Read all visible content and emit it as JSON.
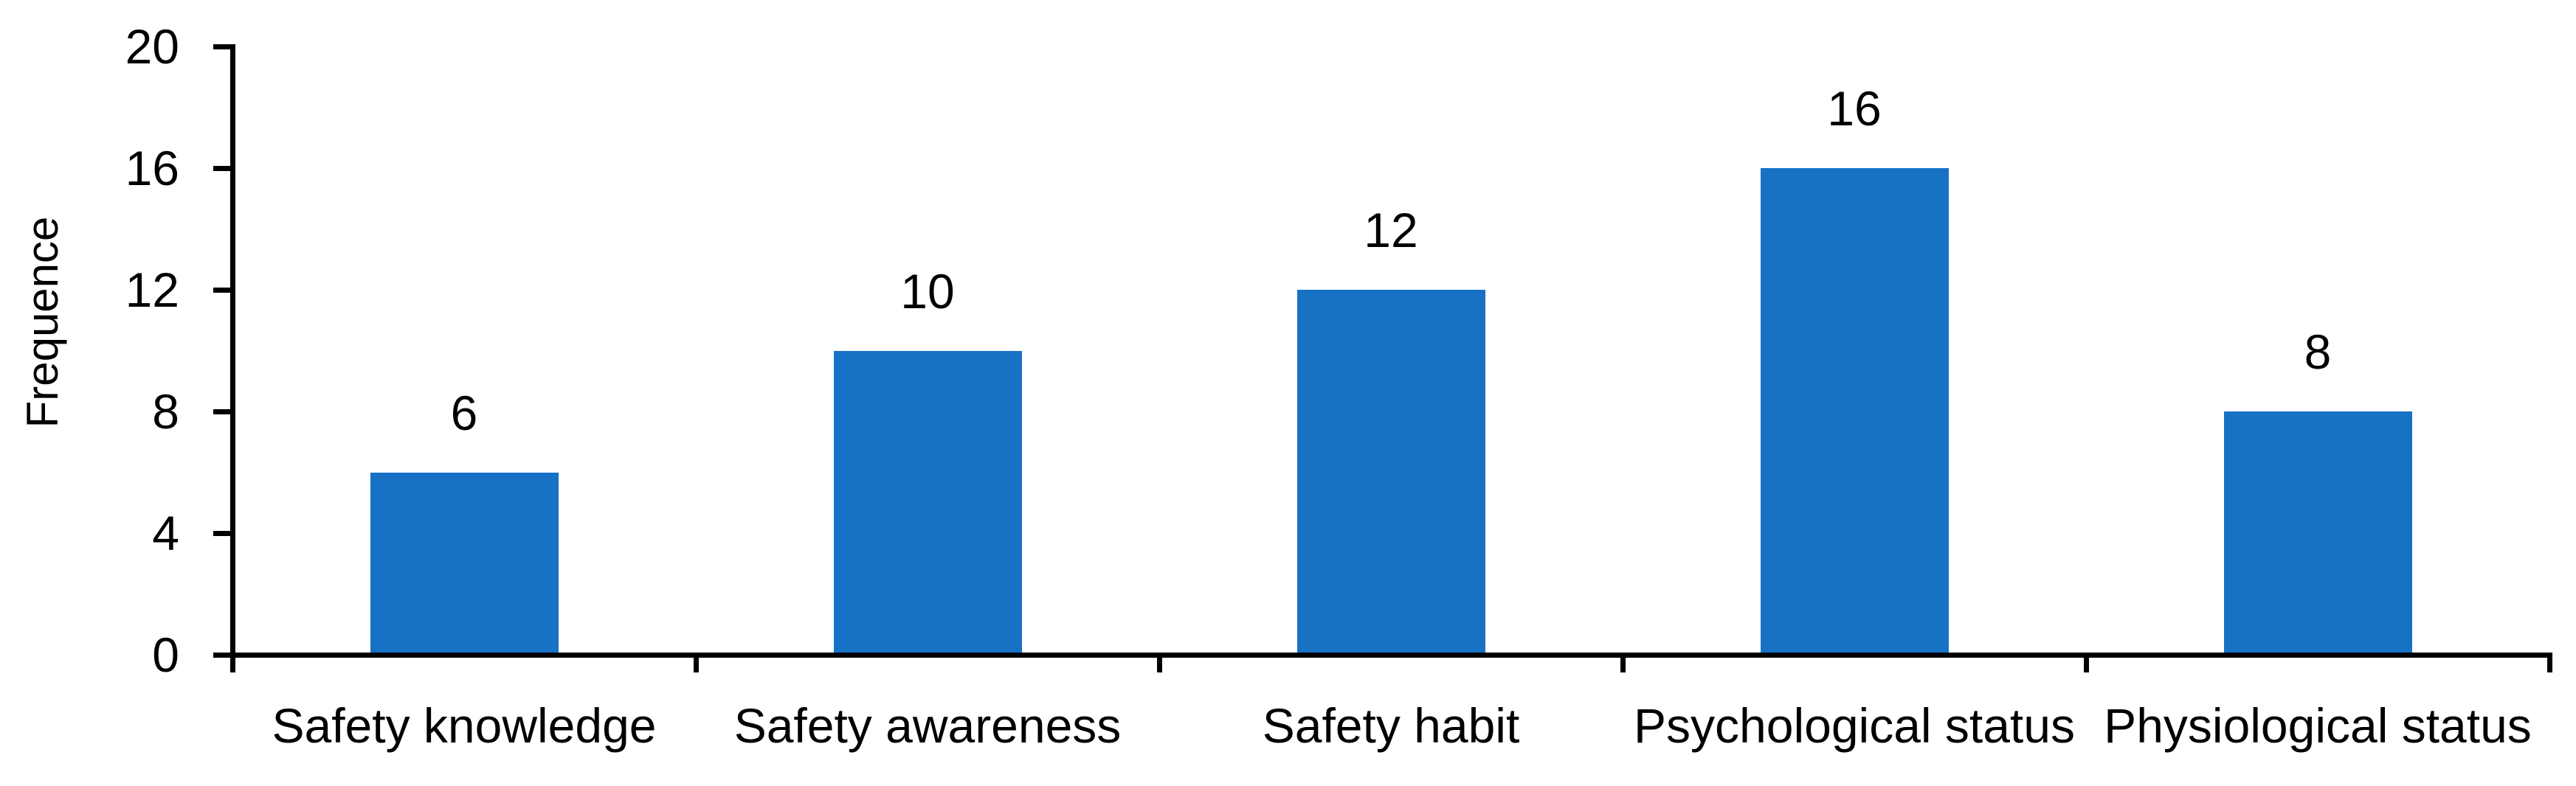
{
  "chart_data": {
    "type": "bar",
    "title": "",
    "xlabel": "",
    "ylabel": "Frequence",
    "categories": [
      "Safety knowledge",
      "Safety awareness",
      "Safety habit",
      "Psychological status",
      "Physiological status"
    ],
    "values": [
      6,
      10,
      12,
      16,
      8
    ],
    "data_labels": [
      "6",
      "10",
      "12",
      "16",
      "8"
    ],
    "ylim": [
      0,
      20
    ],
    "yticks": [
      0,
      4,
      8,
      12,
      16,
      20
    ],
    "ytick_labels": [
      "0",
      "4",
      "8",
      "12",
      "16",
      "20"
    ],
    "grid": false,
    "legend": false,
    "bar_color": "#1772C6",
    "axis_color": "#000000",
    "text_color": "#000000",
    "background_color": "#FFFFFF"
  }
}
